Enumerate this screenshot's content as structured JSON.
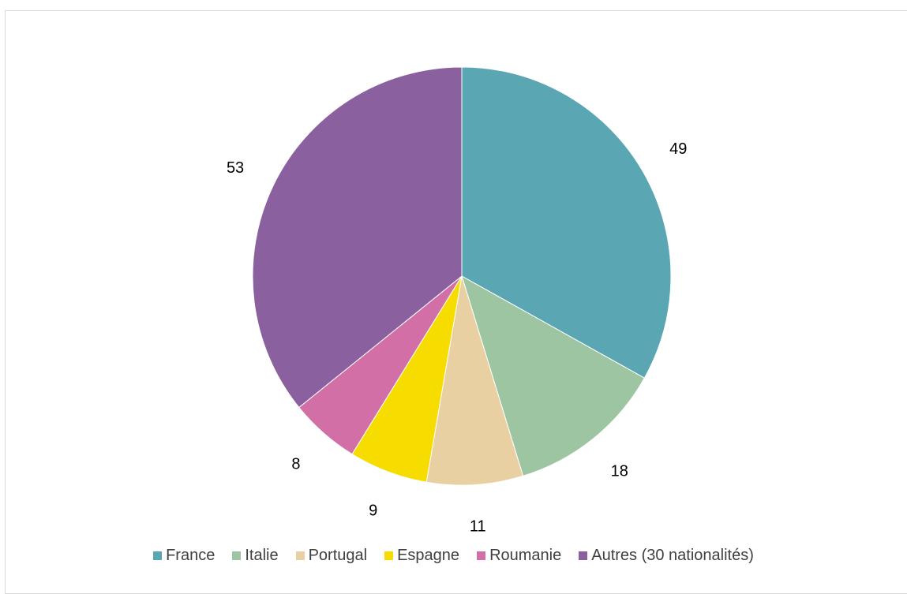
{
  "chart_data": {
    "type": "pie",
    "title": "",
    "categories": [
      "France",
      "Italie",
      "Portugal",
      "Espagne",
      "Roumanie",
      "Autres (30 nationalités)"
    ],
    "values": [
      49,
      18,
      11,
      9,
      8,
      53
    ],
    "colors": [
      "#5aa7b3",
      "#9dc5a1",
      "#e8d0a3",
      "#f7dc00",
      "#d16fa6",
      "#8b609f"
    ],
    "data_labels": [
      "49",
      "18",
      "11",
      "9",
      "8",
      "53"
    ],
    "legend_position": "bottom",
    "start_angle": "top",
    "direction": "clockwise"
  }
}
